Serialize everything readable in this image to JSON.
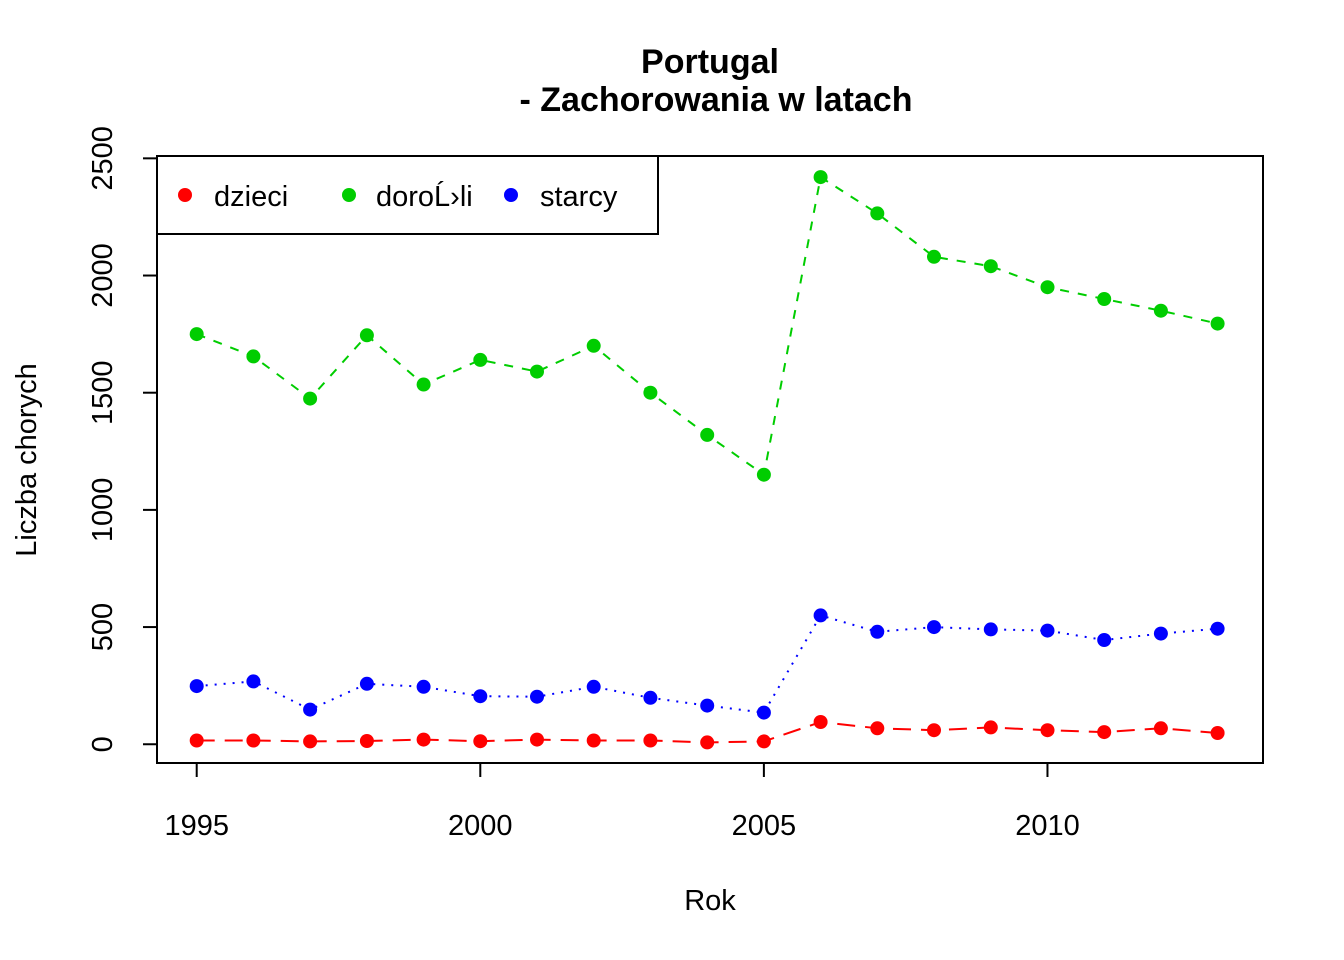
{
  "chart_data": {
    "type": "line",
    "title": "Portugal",
    "subtitle": "- Zachorowania w latach",
    "xlabel": "Rok",
    "ylabel": "Liczba chorych",
    "xlim": [
      1994.3,
      2013.8
    ],
    "ylim": [
      -80,
      2510
    ],
    "x_ticks": [
      1995,
      2000,
      2005,
      2010
    ],
    "y_ticks": [
      0,
      500,
      1000,
      1500,
      2000,
      2500
    ],
    "grid": false,
    "legend_position": "top-left",
    "x": [
      1995,
      1996,
      1997,
      1998,
      1999,
      2000,
      2001,
      2002,
      2003,
      2004,
      2005,
      2006,
      2007,
      2008,
      2009,
      2010,
      2011,
      2012,
      2013
    ],
    "series": [
      {
        "name": "dzieci",
        "color": "#ff0000",
        "dash": "longdash",
        "values": [
          16,
          16,
          12,
          14,
          20,
          13,
          20,
          16,
          16,
          8,
          12,
          95,
          68,
          60,
          72,
          60,
          52,
          68,
          48
        ]
      },
      {
        "name": "doroĹ›li",
        "color": "#00cd00",
        "dash": "dashed",
        "values": [
          1750,
          1655,
          1475,
          1745,
          1535,
          1640,
          1590,
          1700,
          1500,
          1320,
          1150,
          2420,
          2265,
          2080,
          2040,
          1950,
          1900,
          1850,
          1795
        ]
      },
      {
        "name": "starcy",
        "color": "#0000ff",
        "dash": "dotted",
        "values": [
          248,
          268,
          148,
          258,
          245,
          205,
          203,
          245,
          198,
          165,
          135,
          550,
          480,
          500,
          490,
          485,
          445,
          472,
          493
        ]
      }
    ]
  }
}
